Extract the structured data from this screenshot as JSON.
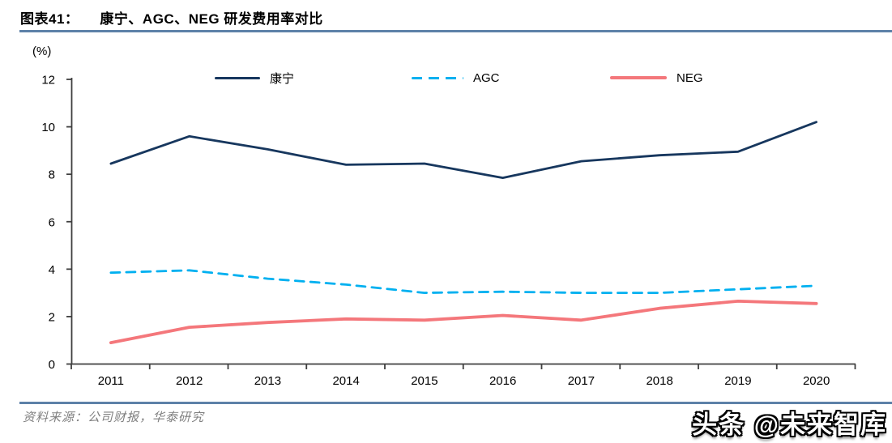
{
  "header": {
    "figure_label": "图表41：",
    "title": "康宁、AGC、NEG 研发费用率对比"
  },
  "chart_data": {
    "type": "line",
    "title": "康宁、AGC、NEG 研发费用率对比",
    "unit_label": "(%)",
    "xlabel": "",
    "ylabel": "(%)",
    "ylim": [
      0,
      12
    ],
    "y_ticks": [
      0,
      2,
      4,
      6,
      8,
      10,
      12
    ],
    "grid": false,
    "legend_position": "top",
    "categories": [
      "2011",
      "2012",
      "2013",
      "2014",
      "2015",
      "2016",
      "2017",
      "2018",
      "2019",
      "2020"
    ],
    "series": [
      {
        "name": "康宁",
        "color": "#17375e",
        "line_style": "solid",
        "values": [
          8.45,
          9.6,
          9.05,
          8.4,
          8.45,
          7.85,
          8.55,
          8.8,
          8.95,
          10.2
        ]
      },
      {
        "name": "AGC",
        "color": "#00b0f0",
        "line_style": "dashed",
        "values": [
          3.85,
          3.95,
          3.6,
          3.35,
          3.0,
          3.05,
          3.0,
          3.0,
          3.15,
          3.3
        ]
      },
      {
        "name": "NEG",
        "color": "#f4777b",
        "line_style": "solid",
        "values": [
          0.9,
          1.55,
          1.75,
          1.9,
          1.85,
          2.05,
          1.85,
          2.35,
          2.65,
          2.55
        ]
      }
    ]
  },
  "footer": {
    "source": "资料来源：公司财报，华泰研究"
  },
  "watermark": {
    "text": "头条 @未来智库"
  },
  "colors": {
    "rule": "#5d81a8",
    "axis": "#3f3f3f",
    "corning": "#17375e",
    "agc": "#00b0f0",
    "neg": "#f4777b",
    "source_text": "#7f7f7f"
  }
}
